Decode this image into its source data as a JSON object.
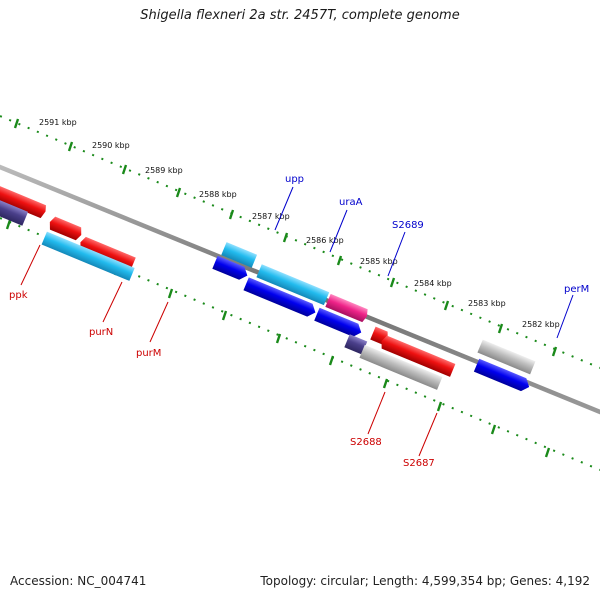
{
  "title": "Shigella flexneri 2a str. 2457T, complete genome",
  "footer": {
    "accession": "Accession: NC_004741",
    "info": "Topology: circular; Length: 4,599,354 bp; Genes: 4,192"
  },
  "colors": {
    "backbone": "#7a7a7a",
    "tick_ring": "#1a8a1a",
    "label_red": "#cc0000",
    "label_blue": "#0000cc",
    "red_gene": "#ee1111",
    "cyan_gene": "#22bbee",
    "blue_gene": "#0000ee",
    "navy_gene": "#4a3f8a",
    "magenta_gene": "#ee2288",
    "gray_gene": "#b8b8b8"
  },
  "kbp_labels": [
    "2591 kbp",
    "2590 kbp",
    "2589 kbp",
    "2588 kbp",
    "2587 kbp",
    "2586 kbp",
    "2585 kbp",
    "2584 kbp",
    "2583 kbp",
    "2582 kbp"
  ],
  "gene_labels": [
    {
      "name": "ppk",
      "color": "red"
    },
    {
      "name": "purN",
      "color": "red"
    },
    {
      "name": "purM",
      "color": "red"
    },
    {
      "name": "upp",
      "color": "blue"
    },
    {
      "name": "uraA",
      "color": "blue"
    },
    {
      "name": "S2689",
      "color": "blue"
    },
    {
      "name": "perM",
      "color": "blue"
    },
    {
      "name": "S2688",
      "color": "red"
    },
    {
      "name": "S2687",
      "color": "red"
    }
  ]
}
